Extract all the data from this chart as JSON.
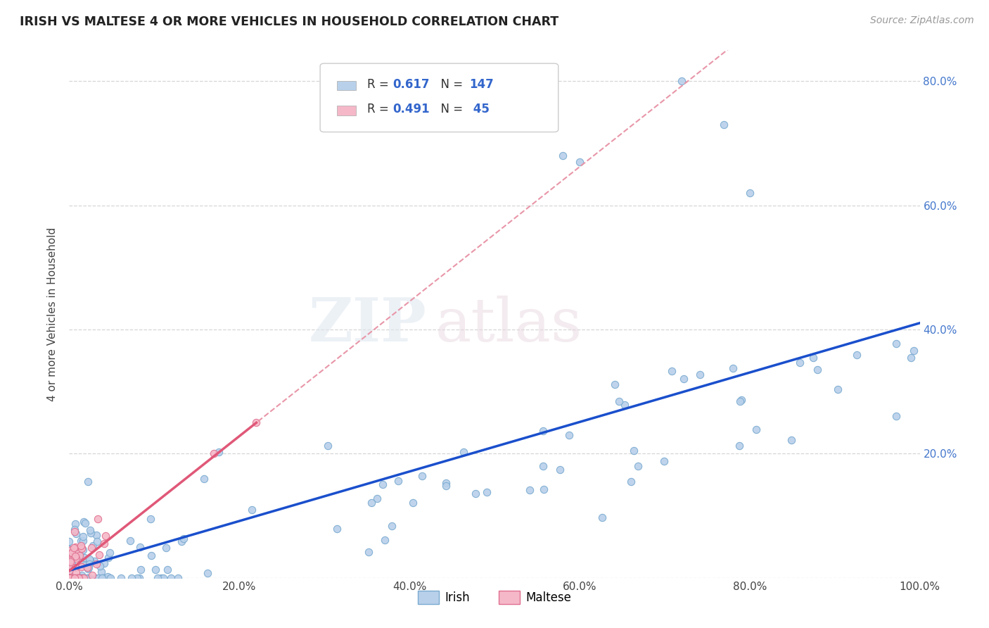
{
  "title": "IRISH VS MALTESE 4 OR MORE VEHICLES IN HOUSEHOLD CORRELATION CHART",
  "source_text": "Source: ZipAtlas.com",
  "ylabel": "4 or more Vehicles in Household",
  "irish_color": "#b8d0ea",
  "irish_edge_color": "#7aaad0",
  "maltese_color": "#f5b8c8",
  "maltese_edge_color": "#e07090",
  "irish_line_color": "#1a4fcc",
  "maltese_solid_color": "#e05878",
  "maltese_dash_color": "#e896a8",
  "irish_R": 0.617,
  "irish_N": 147,
  "maltese_R": 0.491,
  "maltese_N": 45,
  "watermark_zip": "ZIP",
  "watermark_atlas": "atlas",
  "background_color": "#ffffff",
  "grid_color": "#cccccc",
  "right_tick_color": "#4477cc",
  "legend_box_color": "#dddddd"
}
